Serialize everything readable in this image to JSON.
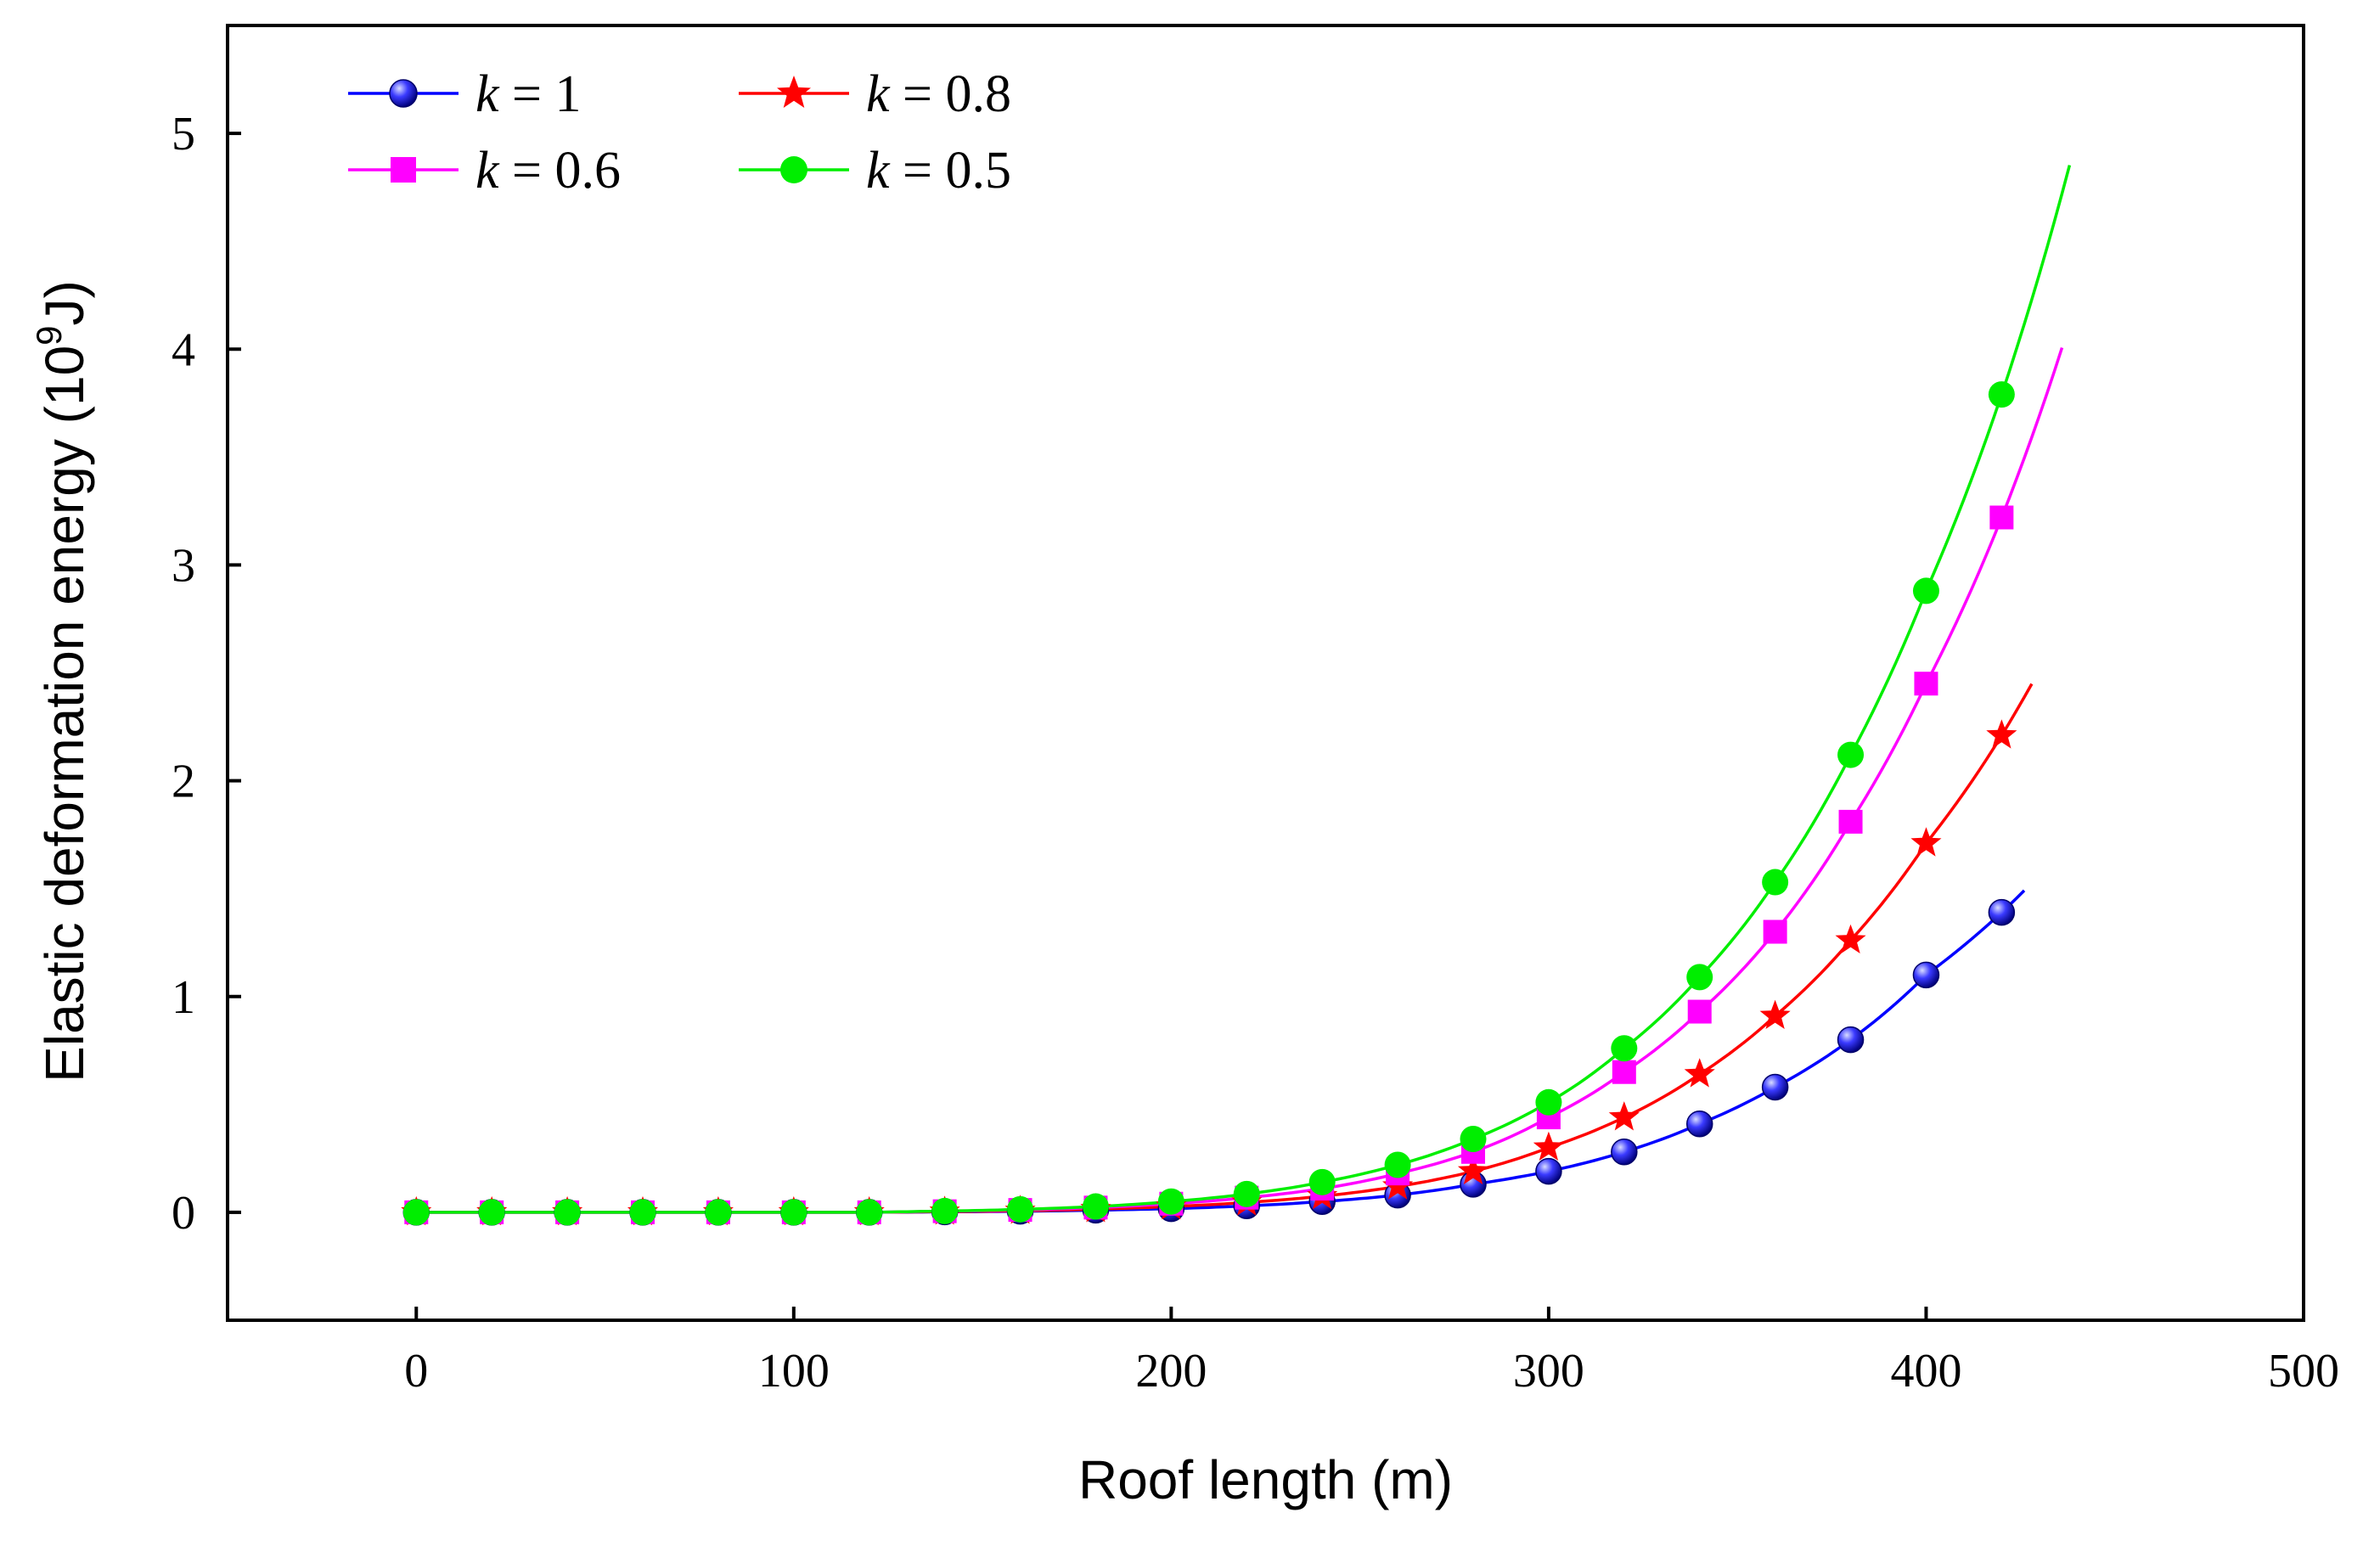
{
  "chart_data": {
    "type": "line",
    "title": "",
    "xlabel": "Roof length (m)",
    "ylabel_main": "Elastic deformation energy (10",
    "ylabel_sup": "9",
    "ylabel_end": "J)",
    "xlim": [
      -50,
      500
    ],
    "ylim": [
      -0.5,
      5.5
    ],
    "xticks": [
      0,
      100,
      200,
      300,
      400,
      500
    ],
    "xtick_labels": [
      "0",
      "100",
      "200",
      "300",
      "400",
      "500"
    ],
    "yticks": [
      0,
      1,
      2,
      3,
      4,
      5
    ],
    "ytick_labels": [
      "0",
      "1",
      "2",
      "3",
      "4",
      "5"
    ],
    "legend_position": "top-left",
    "x": [
      0,
      20,
      40,
      60,
      80,
      100,
      120,
      140,
      160,
      180,
      200,
      220,
      240,
      260,
      280,
      300,
      320,
      340,
      360,
      380,
      400,
      420
    ],
    "series": [
      {
        "name": "k = 1",
        "var": "k",
        "eq": " = 1",
        "color": "#0000ff",
        "marker": "sphere",
        "curve_end": 427,
        "values": [
          0,
          0,
          0,
          0,
          0,
          0,
          0,
          0.002,
          0.005,
          0.01,
          0.017,
          0.03,
          0.05,
          0.08,
          0.13,
          0.19,
          0.28,
          0.41,
          0.58,
          0.8,
          1.1,
          1.39
        ]
      },
      {
        "name": "k = 0.8",
        "var": "k",
        "eq": " = 0.8",
        "color": "#ff0000",
        "marker": "star",
        "curve_end": 429,
        "values": [
          0,
          0,
          0,
          0,
          0,
          0,
          0,
          0.003,
          0.007,
          0.015,
          0.027,
          0.046,
          0.075,
          0.12,
          0.19,
          0.3,
          0.44,
          0.64,
          0.91,
          1.26,
          1.71,
          2.21
        ]
      },
      {
        "name": "k = 0.6",
        "var": "k",
        "eq": " = 0.6",
        "color": "#ff00ff",
        "marker": "square",
        "curve_end": 437,
        "values": [
          0,
          0,
          0,
          0,
          0,
          0,
          0,
          0.005,
          0.011,
          0.022,
          0.04,
          0.068,
          0.11,
          0.18,
          0.28,
          0.44,
          0.65,
          0.93,
          1.3,
          1.81,
          2.45,
          3.22
        ]
      },
      {
        "name": "k = 0.5",
        "var": "k",
        "eq": " = 0.5",
        "color": "#00ee00",
        "marker": "circle",
        "curve_end": 439,
        "values": [
          0,
          0,
          0,
          0,
          0,
          0,
          0,
          0.006,
          0.014,
          0.027,
          0.05,
          0.085,
          0.14,
          0.22,
          0.34,
          0.51,
          0.76,
          1.09,
          1.53,
          2.12,
          2.88,
          3.79
        ]
      }
    ]
  }
}
